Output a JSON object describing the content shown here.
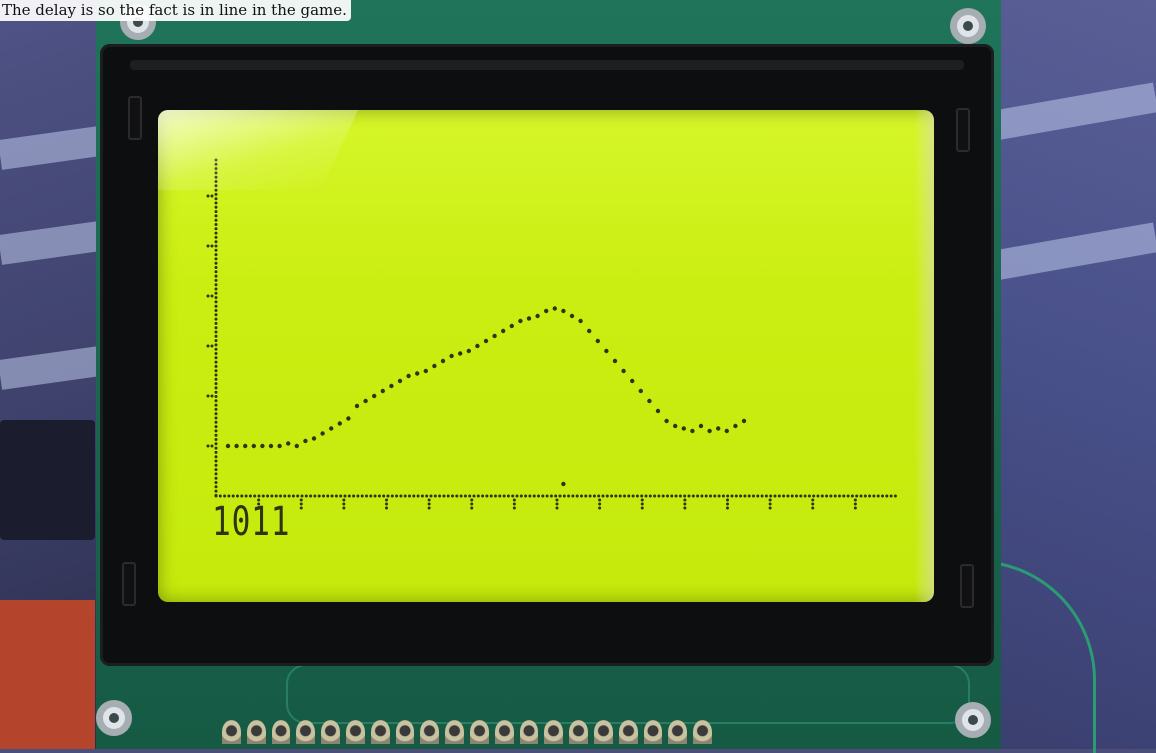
{
  "caption": "The delay is so the fact is in line in the game.",
  "display": {
    "readout": "1011",
    "pixel_color": "#2c3512",
    "backlight_color": "#cbee12"
  },
  "chart_data": {
    "type": "scatter",
    "title": "",
    "xlabel": "",
    "ylabel": "",
    "x_ticks": 15,
    "y_ticks": 6,
    "grid": false,
    "series": [
      {
        "values": [
          [
            0,
            0
          ],
          [
            1,
            0
          ],
          [
            2,
            0
          ],
          [
            3,
            0
          ],
          [
            4,
            0
          ],
          [
            5,
            0
          ],
          [
            6,
            0
          ],
          [
            7,
            0.05
          ],
          [
            8,
            0
          ],
          [
            9,
            0.1
          ],
          [
            10,
            0.15
          ],
          [
            11,
            0.25
          ],
          [
            12,
            0.35
          ],
          [
            13,
            0.45
          ],
          [
            14,
            0.55
          ],
          [
            15,
            0.8
          ],
          [
            16,
            0.9
          ],
          [
            17,
            1.0
          ],
          [
            18,
            1.1
          ],
          [
            19,
            1.2
          ],
          [
            20,
            1.3
          ],
          [
            21,
            1.4
          ],
          [
            22,
            1.45
          ],
          [
            23,
            1.5
          ],
          [
            24,
            1.6
          ],
          [
            25,
            1.7
          ],
          [
            26,
            1.8
          ],
          [
            27,
            1.85
          ],
          [
            28,
            1.9
          ],
          [
            29,
            2.0
          ],
          [
            30,
            2.1
          ],
          [
            31,
            2.2
          ],
          [
            32,
            2.3
          ],
          [
            33,
            2.4
          ],
          [
            34,
            2.5
          ],
          [
            35,
            2.55
          ],
          [
            36,
            2.6
          ],
          [
            37,
            2.7
          ],
          [
            38,
            2.75
          ],
          [
            39,
            2.7
          ],
          [
            40,
            2.6
          ],
          [
            41,
            2.5
          ],
          [
            42,
            2.3
          ],
          [
            43,
            2.1
          ],
          [
            44,
            1.9
          ],
          [
            45,
            1.7
          ],
          [
            46,
            1.5
          ],
          [
            47,
            1.3
          ],
          [
            48,
            1.1
          ],
          [
            49,
            0.9
          ],
          [
            50,
            0.7
          ],
          [
            51,
            0.5
          ],
          [
            52,
            0.4
          ],
          [
            53,
            0.35
          ],
          [
            54,
            0.3
          ],
          [
            55,
            0.4
          ],
          [
            56,
            0.3
          ],
          [
            57,
            0.35
          ],
          [
            58,
            0.3
          ],
          [
            59,
            0.4
          ],
          [
            60,
            0.5
          ]
        ]
      }
    ],
    "marker": [
      39,
      -0.3
    ]
  }
}
